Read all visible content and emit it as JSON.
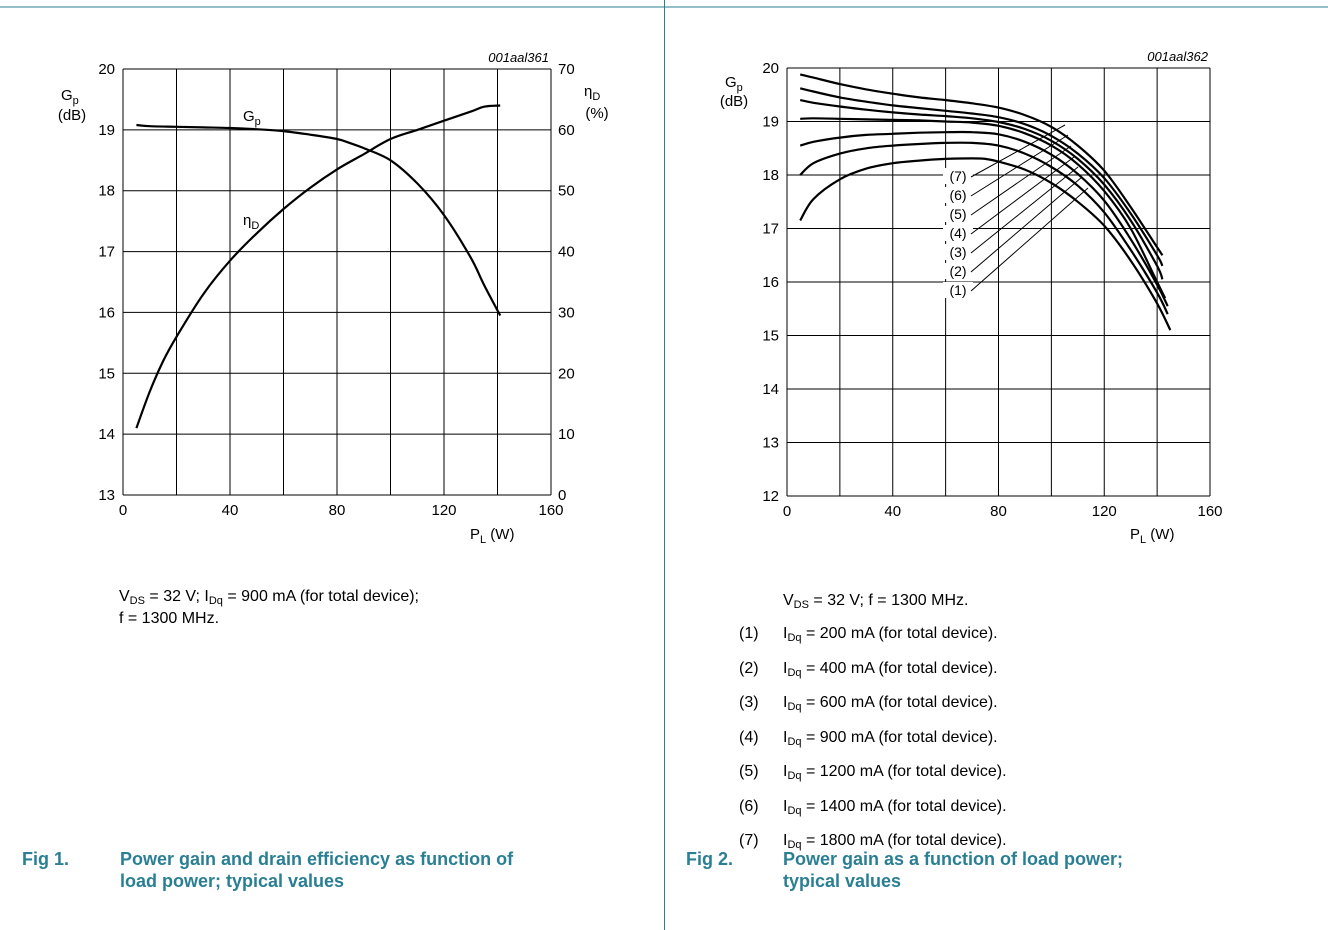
{
  "figures": [
    {
      "label": "Fig 1.",
      "title_line1": "Power gain and drain efficiency as function of",
      "title_line2": "load power; typical values",
      "caption": {
        "vds": "V",
        "vds_sub": "DS",
        "vds_rest": " = 32 V; I",
        "idq_sub": "Dq",
        "idq_rest": " = 900 mA (for total device);",
        "line2": "f = 1300 MHz."
      }
    },
    {
      "label": "Fig 2.",
      "title_line1": "Power gain as a function of load power;",
      "title_line2": "typical values",
      "caption": {
        "vds": "V",
        "vds_sub": "DS",
        "vds_rest": " = 32 V; f = 1300 MHz."
      },
      "notes": [
        {
          "num": "(1)",
          "value": " = 200 mA (for total device)."
        },
        {
          "num": "(2)",
          "value": " = 400 mA (for total device)."
        },
        {
          "num": "(3)",
          "value": " = 600 mA (for total device)."
        },
        {
          "num": "(4)",
          "value": " = 900 mA (for total device)."
        },
        {
          "num": "(5)",
          "value": " = 1200 mA (for total device)."
        },
        {
          "num": "(6)",
          "value": " = 1400 mA (for total device)."
        },
        {
          "num": "(7)",
          "value": " = 1800 mA (for total device)."
        }
      ],
      "note_symbol": "I",
      "note_symbol_sub": "Dq"
    }
  ],
  "chart_data": [
    {
      "type": "line",
      "code": "001aal361",
      "xlabel": "P",
      "xlabel_sub": "L",
      "xlabel_unit": " (W)",
      "ylabel": "G",
      "ylabel_sub": "p",
      "ylabel_unit": "(dB)",
      "y2label": "η",
      "y2label_sub": "D",
      "y2label_unit": "(%)",
      "xlim": [
        0,
        160
      ],
      "ylim": [
        13,
        20
      ],
      "y2lim": [
        0,
        70
      ],
      "xticks": [
        "0",
        "40",
        "80",
        "120",
        "160"
      ],
      "yticks": [
        "13",
        "14",
        "15",
        "16",
        "17",
        "18",
        "19",
        "20"
      ],
      "y2ticks": [
        "0",
        "10",
        "20",
        "30",
        "40",
        "50",
        "60",
        "70"
      ],
      "grid": true,
      "series": [
        {
          "name": "G",
          "name_sub": "p",
          "axis": "left",
          "x": [
            5,
            10,
            20,
            30,
            40,
            50,
            60,
            70,
            80,
            85,
            90,
            100,
            110,
            120,
            130,
            135,
            141
          ],
          "y": [
            19.08,
            19.06,
            19.05,
            19.04,
            19.03,
            19.01,
            18.98,
            18.92,
            18.85,
            18.78,
            18.7,
            18.5,
            18.12,
            17.6,
            16.9,
            16.45,
            15.95
          ]
        },
        {
          "name": "η",
          "name_sub": "D",
          "axis": "right",
          "x": [
            5,
            10,
            15,
            20,
            30,
            40,
            50,
            60,
            70,
            80,
            90,
            100,
            110,
            120,
            130,
            135,
            141
          ],
          "y": [
            11,
            17,
            22,
            26,
            33,
            38.5,
            43,
            47,
            50.5,
            53.5,
            56,
            58.5,
            60,
            61.5,
            63,
            63.8,
            64
          ]
        }
      ]
    },
    {
      "type": "line",
      "code": "001aal362",
      "xlabel": "P",
      "xlabel_sub": "L",
      "xlabel_unit": " (W)",
      "ylabel": "G",
      "ylabel_sub": "p",
      "ylabel_unit": "(dB)",
      "xlim": [
        0,
        160
      ],
      "ylim": [
        12,
        20
      ],
      "xticks": [
        "0",
        "40",
        "80",
        "120",
        "160"
      ],
      "yticks": [
        "12",
        "13",
        "14",
        "15",
        "16",
        "17",
        "18",
        "19",
        "20"
      ],
      "grid": true,
      "series": [
        {
          "name": "(1)",
          "x": [
            5,
            10,
            20,
            30,
            40,
            50,
            60,
            70,
            75,
            80,
            90,
            100,
            110,
            120,
            130,
            140,
            145
          ],
          "y": [
            17.15,
            17.55,
            17.92,
            18.12,
            18.22,
            18.27,
            18.3,
            18.31,
            18.3,
            18.25,
            18.1,
            17.85,
            17.5,
            17.05,
            16.4,
            15.6,
            15.1
          ]
        },
        {
          "name": "(2)",
          "x": [
            5,
            10,
            20,
            30,
            40,
            50,
            60,
            70,
            80,
            90,
            100,
            110,
            120,
            130,
            140,
            144
          ],
          "y": [
            18.0,
            18.22,
            18.4,
            18.5,
            18.55,
            18.58,
            18.6,
            18.6,
            18.55,
            18.4,
            18.15,
            17.8,
            17.3,
            16.6,
            15.8,
            15.4
          ]
        },
        {
          "name": "(3)",
          "x": [
            5,
            10,
            20,
            30,
            40,
            50,
            60,
            70,
            80,
            90,
            100,
            110,
            120,
            130,
            140,
            144
          ],
          "y": [
            18.55,
            18.62,
            18.7,
            18.75,
            18.77,
            18.79,
            18.8,
            18.8,
            18.76,
            18.62,
            18.38,
            18.02,
            17.52,
            16.8,
            15.95,
            15.55
          ]
        },
        {
          "name": "(4)",
          "x": [
            5,
            10,
            20,
            30,
            40,
            50,
            60,
            70,
            80,
            90,
            100,
            110,
            120,
            130,
            140,
            143
          ],
          "y": [
            19.05,
            19.06,
            19.05,
            19.04,
            19.03,
            19.02,
            19.0,
            18.98,
            18.92,
            18.78,
            18.55,
            18.2,
            17.7,
            17.0,
            16.0,
            15.7
          ]
        },
        {
          "name": "(5)",
          "x": [
            5,
            10,
            20,
            30,
            40,
            50,
            60,
            70,
            80,
            90,
            100,
            110,
            120,
            130,
            140,
            142
          ],
          "y": [
            19.4,
            19.35,
            19.28,
            19.22,
            19.17,
            19.13,
            19.1,
            19.06,
            18.99,
            18.86,
            18.64,
            18.3,
            17.82,
            17.15,
            16.3,
            16.05
          ]
        },
        {
          "name": "(6)",
          "x": [
            5,
            10,
            20,
            30,
            40,
            50,
            60,
            70,
            80,
            90,
            100,
            110,
            120,
            130,
            140,
            142
          ],
          "y": [
            19.62,
            19.56,
            19.45,
            19.37,
            19.3,
            19.25,
            19.2,
            19.15,
            19.08,
            18.95,
            18.73,
            18.4,
            17.94,
            17.28,
            16.5,
            16.3
          ]
        },
        {
          "name": "(7)",
          "x": [
            5,
            10,
            20,
            30,
            40,
            50,
            60,
            70,
            80,
            90,
            100,
            110,
            120,
            130,
            140,
            142
          ],
          "y": [
            19.88,
            19.82,
            19.7,
            19.6,
            19.52,
            19.45,
            19.4,
            19.34,
            19.26,
            19.12,
            18.9,
            18.55,
            18.08,
            17.4,
            16.65,
            16.5
          ]
        }
      ],
      "curve_labels": [
        "(7)",
        "(6)",
        "(5)",
        "(4)",
        "(3)",
        "(2)",
        "(1)"
      ]
    }
  ]
}
